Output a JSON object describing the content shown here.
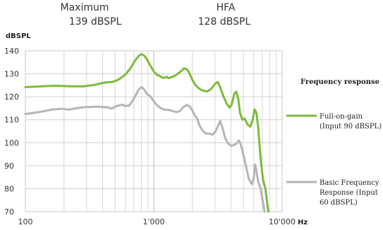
{
  "header": {
    "maximum_label": "Maximum",
    "maximum_value": "139 dBSPL",
    "hfa_label": "HFA",
    "hfa_value": "128 dBSPL"
  },
  "chart_data": {
    "type": "line",
    "title": "",
    "ylabel": "dBSPL",
    "xlabel": "Hz",
    "x_scale": "log",
    "xlim": [
      100,
      10000
    ],
    "ylim": [
      70,
      140
    ],
    "y_ticks": [
      70,
      80,
      90,
      100,
      110,
      120,
      130,
      140
    ],
    "x_ticks": [
      100,
      1000,
      10000
    ],
    "x_tick_labels": [
      "100",
      "1'000",
      "10'000"
    ],
    "grid": true,
    "legend_title": "Frequency response",
    "legend_position": "right",
    "series": [
      {
        "name": "Full-on-gain (Input 90 dBSPL)",
        "legend_lines": [
          "Full-on-gain",
          "(Input 90 dBSPL)"
        ],
        "color": "#7dbb3c",
        "points": [
          [
            100,
            124.2
          ],
          [
            130,
            124.5
          ],
          [
            170,
            124.8
          ],
          [
            220,
            124.6
          ],
          [
            280,
            124.5
          ],
          [
            320,
            124.9
          ],
          [
            360,
            125.4
          ],
          [
            400,
            126
          ],
          [
            430,
            126.3
          ],
          [
            470,
            126.4
          ],
          [
            520,
            127.2
          ],
          [
            560,
            128.3
          ],
          [
            610,
            130
          ],
          [
            660,
            132.5
          ],
          [
            710,
            135.5
          ],
          [
            760,
            137.7
          ],
          [
            800,
            138.5
          ],
          [
            840,
            138
          ],
          [
            880,
            136.5
          ],
          [
            930,
            134
          ],
          [
            1000,
            131
          ],
          [
            1060,
            129.5
          ],
          [
            1120,
            129
          ],
          [
            1170,
            128.2
          ],
          [
            1220,
            128.3
          ],
          [
            1260,
            128.7
          ],
          [
            1300,
            128.1
          ],
          [
            1350,
            128.3
          ],
          [
            1400,
            128.8
          ],
          [
            1450,
            129
          ],
          [
            1520,
            129.8
          ],
          [
            1600,
            130.7
          ],
          [
            1680,
            131.8
          ],
          [
            1720,
            132.4
          ],
          [
            1780,
            132.1
          ],
          [
            1850,
            131.4
          ],
          [
            1920,
            129.5
          ],
          [
            2000,
            127.3
          ],
          [
            2100,
            125.3
          ],
          [
            2250,
            123.6
          ],
          [
            2400,
            122.7
          ],
          [
            2600,
            122.3
          ],
          [
            2800,
            123.4
          ],
          [
            3000,
            125.6
          ],
          [
            3150,
            126.4
          ],
          [
            3300,
            124
          ],
          [
            3500,
            120
          ],
          [
            3700,
            117
          ],
          [
            3900,
            115.3
          ],
          [
            4050,
            116.7
          ],
          [
            4250,
            121.5
          ],
          [
            4400,
            122.2
          ],
          [
            4550,
            119
          ],
          [
            4700,
            113
          ],
          [
            4900,
            110
          ],
          [
            5100,
            110.5
          ],
          [
            5400,
            107.8
          ],
          [
            5650,
            107
          ],
          [
            5900,
            110
          ],
          [
            6100,
            114.5
          ],
          [
            6300,
            113
          ],
          [
            6500,
            107
          ],
          [
            6800,
            93
          ],
          [
            7100,
            84
          ],
          [
            7400,
            80
          ],
          [
            7600,
            75
          ],
          [
            7800,
            70
          ]
        ]
      },
      {
        "name": "Basic Frequency Response (Input 60 dBSPL)",
        "legend_lines": [
          "Basic Frequency",
          "Response (Input",
          "60 dBSPL)"
        ],
        "color": "#b5b5b5",
        "points": [
          [
            100,
            112.5
          ],
          [
            130,
            113.4
          ],
          [
            160,
            114.4
          ],
          [
            190,
            114.8
          ],
          [
            220,
            114.4
          ],
          [
            250,
            115
          ],
          [
            290,
            115.5
          ],
          [
            330,
            115.6
          ],
          [
            370,
            115.7
          ],
          [
            400,
            115.5
          ],
          [
            440,
            115.4
          ],
          [
            470,
            114.8
          ],
          [
            500,
            115.7
          ],
          [
            540,
            116.3
          ],
          [
            570,
            116.5
          ],
          [
            600,
            116
          ],
          [
            640,
            116.1
          ],
          [
            680,
            118
          ],
          [
            720,
            120.4
          ],
          [
            760,
            123
          ],
          [
            800,
            124.2
          ],
          [
            840,
            123.3
          ],
          [
            880,
            121.3
          ],
          [
            930,
            120.5
          ],
          [
            980,
            118.8
          ],
          [
            1050,
            116.5
          ],
          [
            1120,
            115.2
          ],
          [
            1200,
            114.5
          ],
          [
            1300,
            114.3
          ],
          [
            1400,
            113.8
          ],
          [
            1500,
            113.3
          ],
          [
            1600,
            113.8
          ],
          [
            1700,
            115.5
          ],
          [
            1800,
            116.4
          ],
          [
            1880,
            116
          ],
          [
            1950,
            115
          ],
          [
            2020,
            113.5
          ],
          [
            2100,
            111.5
          ],
          [
            2180,
            110.6
          ],
          [
            2250,
            108
          ],
          [
            2350,
            106
          ],
          [
            2450,
            104.8
          ],
          [
            2550,
            104
          ],
          [
            2700,
            104
          ],
          [
            2850,
            103.5
          ],
          [
            3000,
            104.5
          ],
          [
            3150,
            107
          ],
          [
            3300,
            109.5
          ],
          [
            3450,
            106
          ],
          [
            3600,
            102
          ],
          [
            3800,
            99.6
          ],
          [
            4000,
            98.6
          ],
          [
            4200,
            99
          ],
          [
            4400,
            99.5
          ],
          [
            4600,
            101
          ],
          [
            4750,
            99.5
          ],
          [
            4950,
            95.5
          ],
          [
            5200,
            90.5
          ],
          [
            5500,
            84.3
          ],
          [
            5800,
            82
          ],
          [
            6000,
            84
          ],
          [
            6150,
            90.5
          ],
          [
            6300,
            88
          ],
          [
            6500,
            83
          ],
          [
            6800,
            80
          ],
          [
            7000,
            76
          ],
          [
            7300,
            70
          ]
        ]
      }
    ]
  }
}
